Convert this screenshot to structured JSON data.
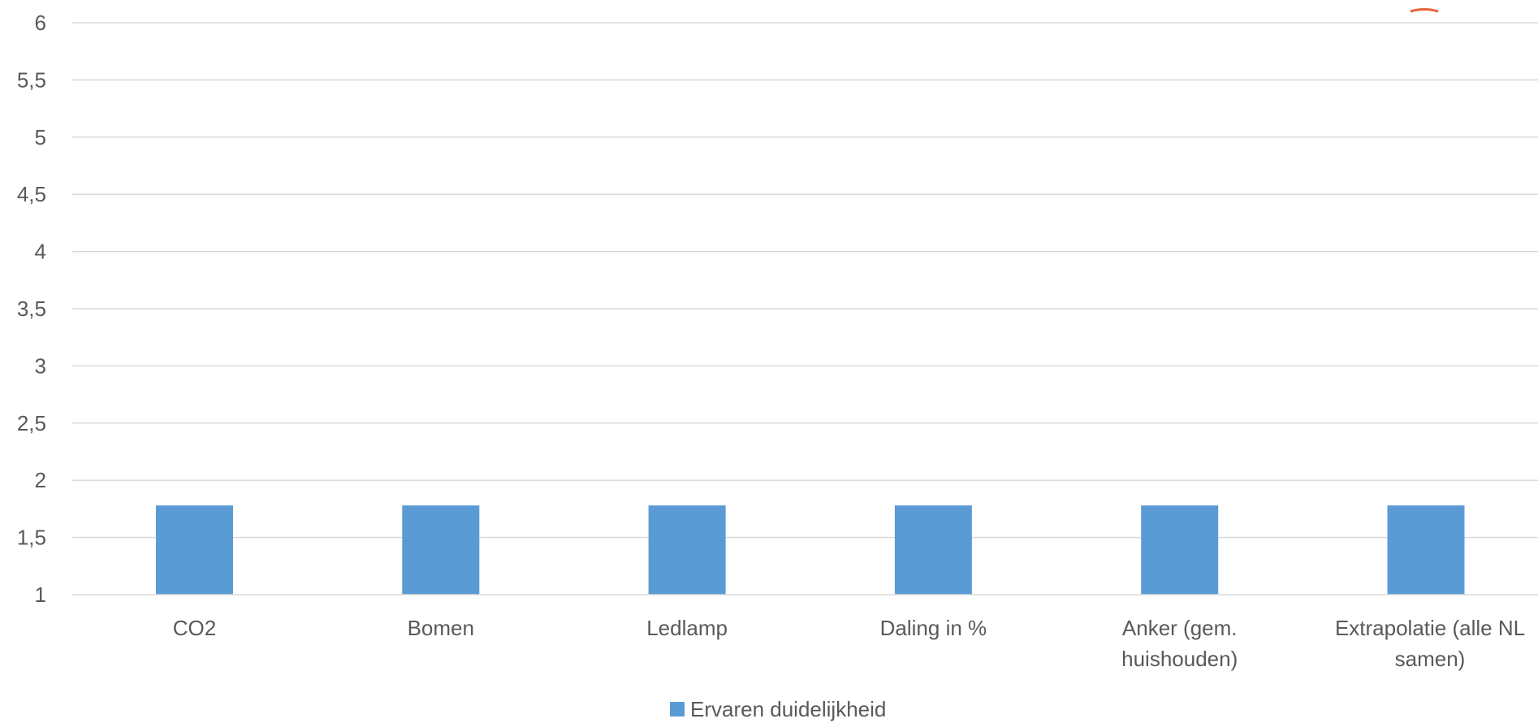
{
  "chart_data": {
    "type": "bar",
    "title": "",
    "xlabel": "",
    "ylabel": "",
    "categories": [
      [
        "CO2"
      ],
      [
        "Bomen"
      ],
      [
        "Ledlamp"
      ],
      [
        "Daling in %"
      ],
      [
        "Anker (gem.",
        "huishouden)"
      ],
      [
        "Extrapolatie (alle NL",
        "samen)"
      ]
    ],
    "series": [
      {
        "name": "Ervaren duidelijkheid",
        "values": [
          1.78,
          1.78,
          1.78,
          1.78,
          1.78,
          1.78
        ]
      }
    ],
    "ylim": [
      1,
      6
    ],
    "yticks": [
      "1",
      "1,5",
      "2",
      "2,5",
      "3",
      "3,5",
      "4",
      "4,5",
      "5",
      "5,5",
      "6"
    ],
    "grid": true,
    "legend_position": "bottom",
    "colors": {
      "bar": "#5B9BD5",
      "grid": "#D9D9D9",
      "text": "#595959",
      "marker": "#E8643C"
    }
  }
}
